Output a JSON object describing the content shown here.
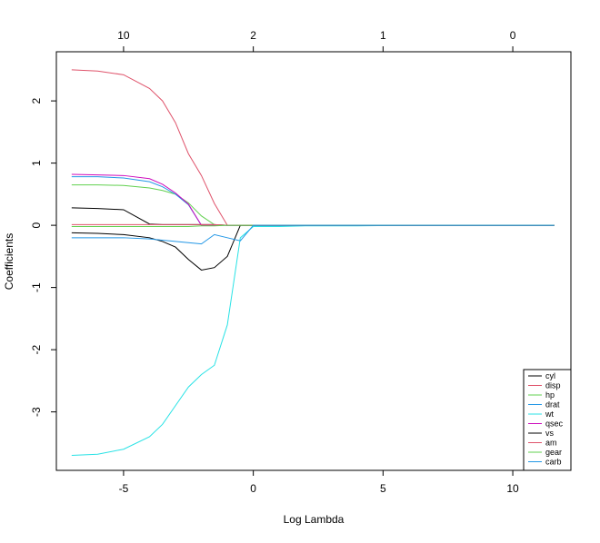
{
  "chart_data": {
    "type": "line",
    "x_label": "Log Lambda",
    "y_label": "Coefficients",
    "xlim": [
      -7.59,
      12.24
    ],
    "ylim": [
      -3.94,
      2.79
    ],
    "xticks": [
      -5,
      0,
      5,
      10
    ],
    "yticks": [
      -3,
      -2,
      -1,
      0,
      1,
      2
    ],
    "top_axis": {
      "positions": [
        -5,
        0,
        5,
        10
      ],
      "labels": [
        "10",
        "2",
        "1",
        "0"
      ]
    },
    "legend": "bottom-right",
    "x": [
      -7,
      -6,
      -5,
      -4,
      -3.5,
      -3,
      -2.5,
      -2,
      -1.5,
      -1,
      -0.5,
      0,
      1,
      2,
      4,
      6,
      8,
      10,
      11.6
    ],
    "series": [
      {
        "name": "cyl",
        "color": "#000000",
        "values": [
          0.28,
          0.27,
          0.25,
          0.02,
          0.01,
          0.01,
          0.01,
          0.01,
          0.01,
          0,
          0,
          0,
          0,
          0,
          0,
          0,
          0,
          0,
          0
        ]
      },
      {
        "name": "disp",
        "color": "#DF536B",
        "values": [
          2.5,
          2.48,
          2.42,
          2.2,
          2.0,
          1.65,
          1.15,
          0.8,
          0.35,
          0,
          0,
          0,
          0,
          0,
          0,
          0,
          0,
          0,
          0
        ]
      },
      {
        "name": "hp",
        "color": "#61D04F",
        "values": [
          0.65,
          0.65,
          0.64,
          0.6,
          0.56,
          0.5,
          0.36,
          0.15,
          0.01,
          0,
          0,
          0,
          0,
          0,
          0,
          0,
          0,
          0,
          0
        ]
      },
      {
        "name": "drat",
        "color": "#2297E6",
        "values": [
          0.78,
          0.78,
          0.76,
          0.7,
          0.62,
          0.5,
          0.33,
          0,
          0,
          0,
          0,
          0,
          0,
          0,
          0,
          0,
          0,
          0,
          0
        ]
      },
      {
        "name": "wt",
        "color": "#28E2E5",
        "values": [
          -3.7,
          -3.68,
          -3.6,
          -3.4,
          -3.2,
          -2.9,
          -2.6,
          -2.4,
          -2.25,
          -1.6,
          -0.2,
          -0.02,
          -0.02,
          -0.01,
          -0.01,
          0,
          0,
          0,
          0
        ]
      },
      {
        "name": "qsec",
        "color": "#CD0BBC",
        "values": [
          0.82,
          0.81,
          0.8,
          0.75,
          0.66,
          0.52,
          0.34,
          0,
          0,
          0,
          0,
          0,
          0,
          0,
          0,
          0,
          0,
          0,
          0
        ]
      },
      {
        "name": "vs",
        "color": "#000000",
        "values": [
          -0.12,
          -0.13,
          -0.15,
          -0.2,
          -0.26,
          -0.35,
          -0.55,
          -0.72,
          -0.68,
          -0.5,
          0,
          0,
          0,
          0,
          0,
          0,
          0,
          0,
          0
        ]
      },
      {
        "name": "am",
        "color": "#DF536B",
        "values": [
          0.01,
          0.01,
          0.01,
          0.01,
          0.01,
          0.01,
          0.01,
          0.01,
          0.01,
          0,
          0,
          0,
          0,
          0,
          0,
          0,
          0,
          0,
          0
        ]
      },
      {
        "name": "gear",
        "color": "#61D04F",
        "values": [
          -0.02,
          -0.02,
          -0.02,
          -0.02,
          -0.02,
          -0.02,
          -0.02,
          -0.01,
          -0.01,
          0,
          0,
          0,
          0,
          0,
          0,
          0,
          0,
          0,
          0
        ]
      },
      {
        "name": "carb",
        "color": "#2297E6",
        "values": [
          -0.2,
          -0.2,
          -0.2,
          -0.22,
          -0.24,
          -0.26,
          -0.28,
          -0.3,
          -0.15,
          -0.2,
          -0.25,
          0,
          0,
          0,
          0,
          0,
          0,
          0,
          0
        ]
      }
    ]
  }
}
